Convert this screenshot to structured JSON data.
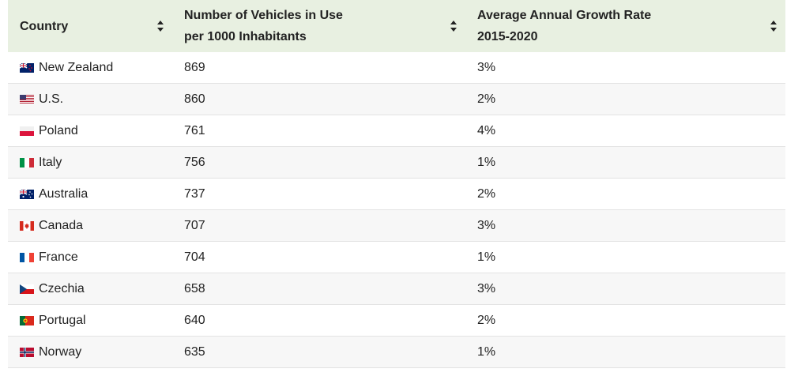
{
  "table": {
    "headers": [
      {
        "label": "Country"
      },
      {
        "label": "Number of Vehicles in Use\nper 1000 Inhabitants"
      },
      {
        "label": "Average Annual Growth Rate\n2015-2020"
      }
    ],
    "rows": [
      {
        "flag": "new-zealand-flag-icon",
        "country": "New Zealand",
        "vehicles": "869",
        "growth": "3%"
      },
      {
        "flag": "us-flag-icon",
        "country": "U.S.",
        "vehicles": "860",
        "growth": "2%"
      },
      {
        "flag": "poland-flag-icon",
        "country": "Poland",
        "vehicles": "761",
        "growth": "4%"
      },
      {
        "flag": "italy-flag-icon",
        "country": "Italy",
        "vehicles": "756",
        "growth": "1%"
      },
      {
        "flag": "australia-flag-icon",
        "country": "Australia",
        "vehicles": "737",
        "growth": "2%"
      },
      {
        "flag": "canada-flag-icon",
        "country": "Canada",
        "vehicles": "707",
        "growth": "3%"
      },
      {
        "flag": "france-flag-icon",
        "country": "France",
        "vehicles": "704",
        "growth": "1%"
      },
      {
        "flag": "czechia-flag-icon",
        "country": "Czechia",
        "vehicles": "658",
        "growth": "3%"
      },
      {
        "flag": "portugal-flag-icon",
        "country": "Portugal",
        "vehicles": "640",
        "growth": "2%"
      },
      {
        "flag": "norway-flag-icon",
        "country": "Norway",
        "vehicles": "635",
        "growth": "1%"
      }
    ]
  },
  "colors": {
    "header_bg": "#e8f0e1",
    "row_alt_bg": "#f7f7f7",
    "text": "#222222"
  }
}
